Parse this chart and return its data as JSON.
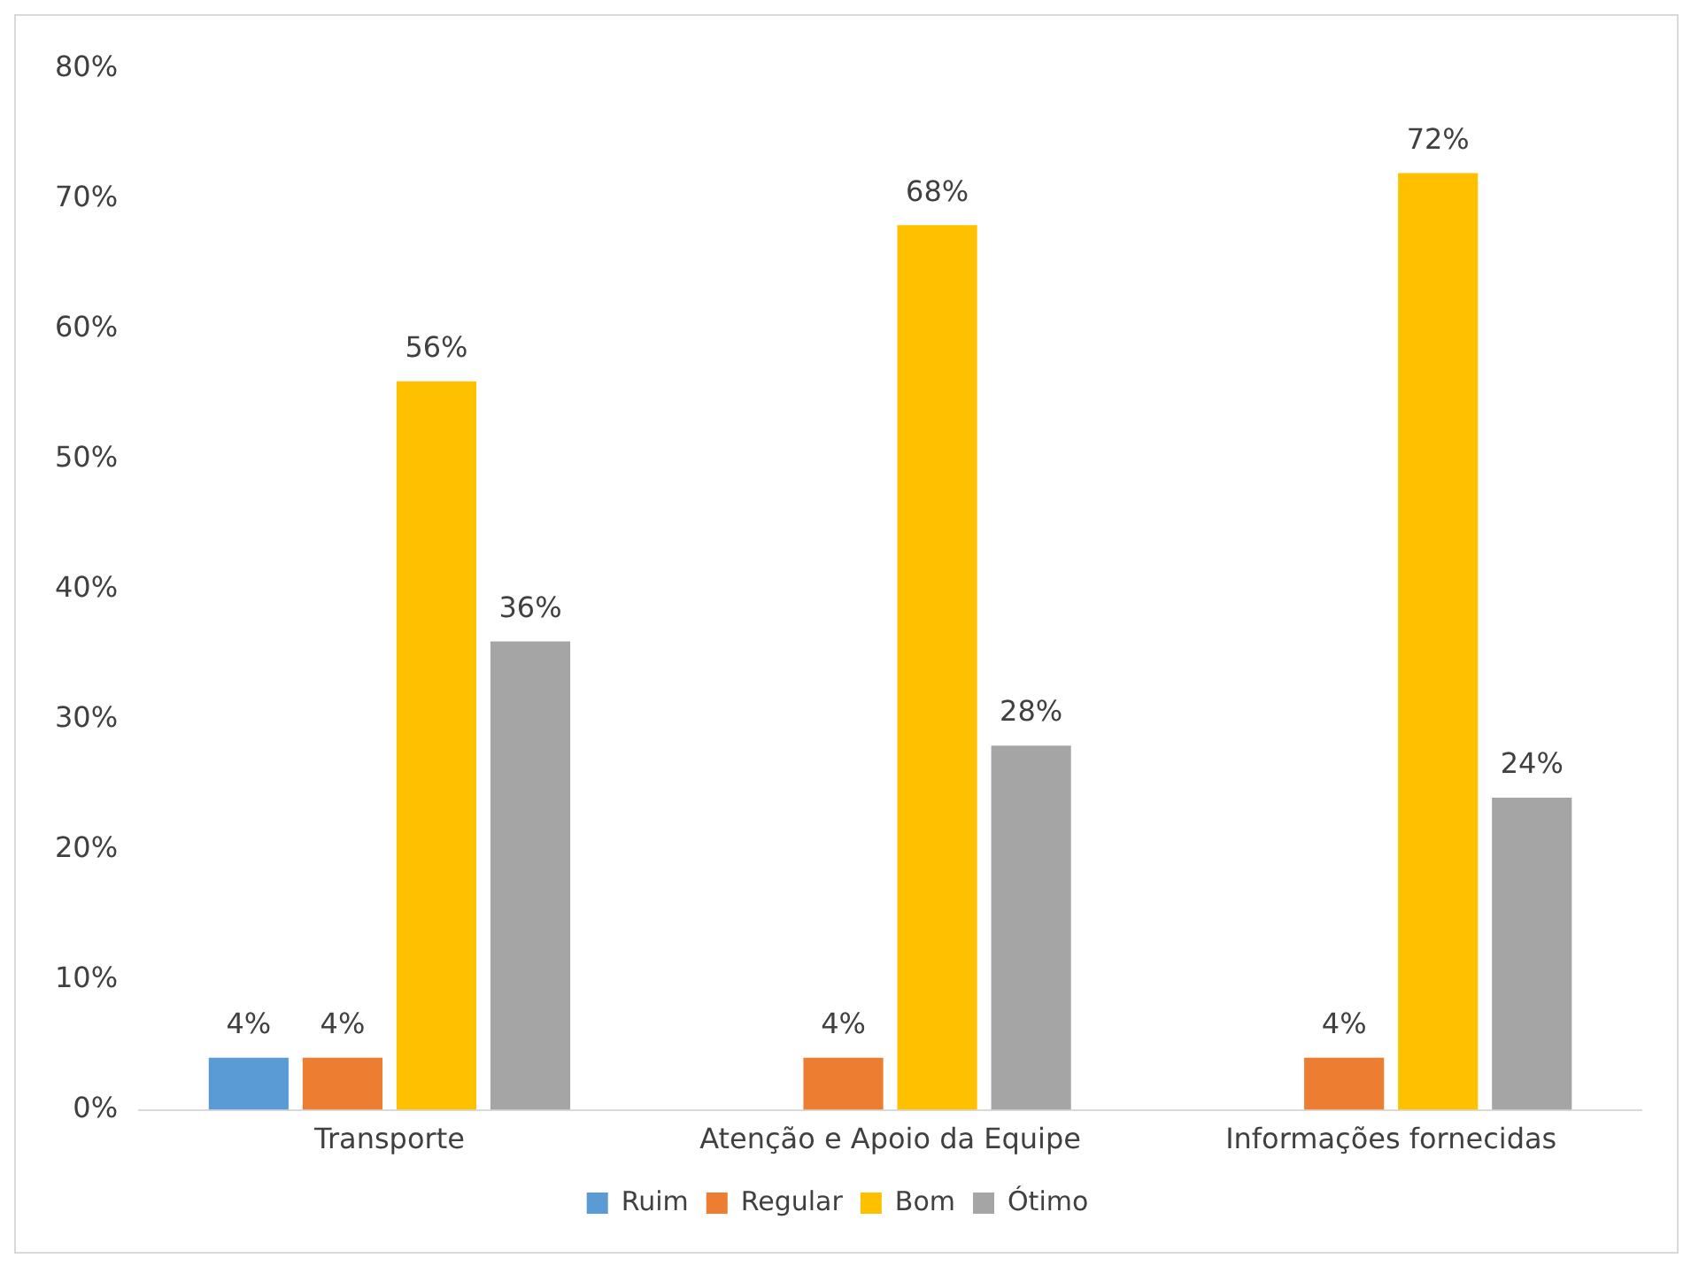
{
  "chart_data": {
    "type": "bar",
    "categories": [
      "Transporte",
      "Atenção e Apoio da Equipe",
      "Informações fornecidas"
    ],
    "series": [
      {
        "name": "Ruim",
        "color": "#5b9bd5",
        "values": [
          4,
          null,
          null
        ],
        "value_labels": [
          "4%",
          null,
          null
        ]
      },
      {
        "name": "Regular",
        "color": "#ed7d31",
        "values": [
          4,
          4,
          4
        ],
        "value_labels": [
          "4%",
          "4%",
          "4%"
        ]
      },
      {
        "name": "Bom",
        "color": "#ffc000",
        "values": [
          56,
          68,
          72
        ],
        "value_labels": [
          "56%",
          "68%",
          "72%"
        ]
      },
      {
        "name": "Ótimo",
        "color": "#a5a5a5",
        "values": [
          36,
          28,
          24
        ],
        "value_labels": [
          "36%",
          "28%",
          "24%"
        ]
      }
    ],
    "ylim": [
      0,
      80
    ],
    "yticks": [
      {
        "value": 0,
        "label": "0%"
      },
      {
        "value": 10,
        "label": "10%"
      },
      {
        "value": 20,
        "label": "20%"
      },
      {
        "value": 30,
        "label": "30%"
      },
      {
        "value": 40,
        "label": "40%"
      },
      {
        "value": 50,
        "label": "50%"
      },
      {
        "value": 60,
        "label": "60%"
      },
      {
        "value": 70,
        "label": "70%"
      },
      {
        "value": 80,
        "label": "80%"
      }
    ],
    "grid": false,
    "legend": "bottom"
  }
}
